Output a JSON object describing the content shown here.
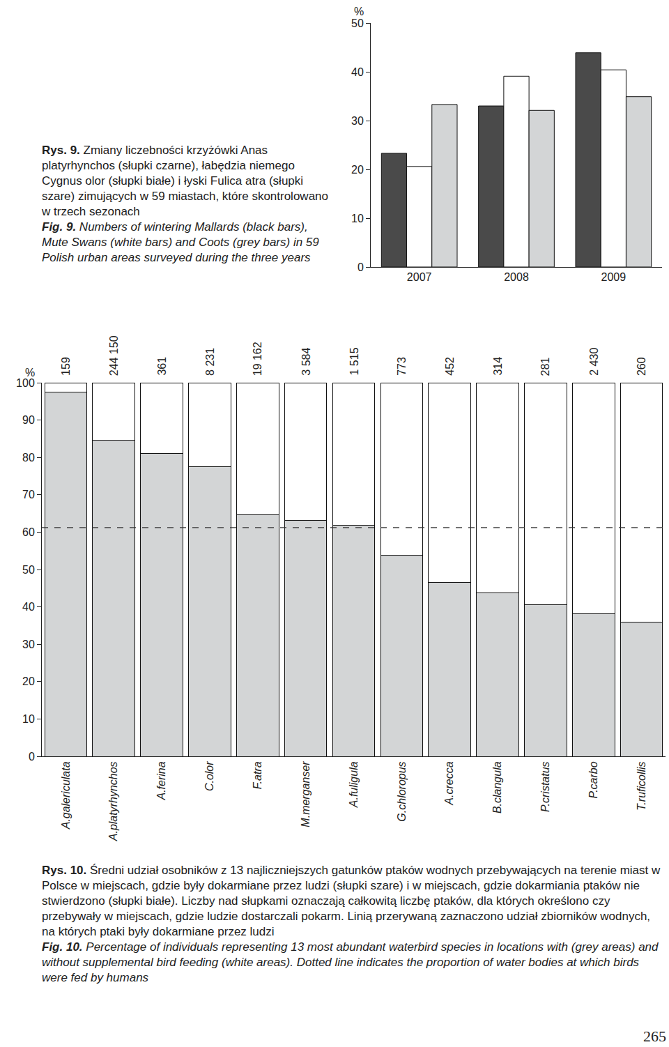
{
  "chart_data": [
    {
      "type": "bar",
      "y_label": "%",
      "categories": [
        "2007",
        "2008",
        "2009"
      ],
      "series": [
        {
          "color": "#4a4a4a",
          "values": [
            23.3,
            33.0,
            43.9
          ]
        },
        {
          "color": "#ffffff",
          "values": [
            20.6,
            39.1,
            40.4
          ]
        },
        {
          "color": "#d3d5d6",
          "values": [
            33.3,
            32.1,
            34.9
          ]
        }
      ],
      "ylim": [
        0,
        50
      ],
      "yticks": [
        0,
        10,
        20,
        30,
        40,
        50
      ],
      "grid": false
    },
    {
      "type": "bar",
      "stacked": true,
      "y_label": "%",
      "categories": [
        "A.galericulata",
        "A.platyrhynchos",
        "A.ferina",
        "C.olor",
        "F.atra",
        "M.merganser",
        "A.fuligula",
        "G.chloropus",
        "A.crecca",
        "B.clangula",
        "P.cristatus",
        "P.carbo",
        "T.ruficollis"
      ],
      "series": [
        {
          "color": "#d3d5d6",
          "values": [
            97.4,
            84.7,
            81.0,
            77.6,
            64.7,
            63.1,
            61.9,
            53.9,
            46.6,
            43.8,
            40.5,
            38.2,
            36.0
          ]
        },
        {
          "color": "#ffffff",
          "values": [
            2.6,
            15.3,
            19.0,
            22.4,
            35.3,
            36.9,
            38.1,
            46.1,
            53.4,
            56.2,
            59.5,
            61.8,
            64.0
          ]
        }
      ],
      "counts": [
        159,
        {
          "value": 244150,
          "label": "244 150"
        },
        361,
        {
          "value": 8231,
          "label": "8 231"
        },
        {
          "value": 19162,
          "label": "19 162"
        },
        {
          "value": 3584,
          "label": "3 584"
        },
        {
          "value": 1515,
          "label": "1 515"
        },
        773,
        452,
        314,
        281,
        {
          "value": 2430,
          "label": "2 430"
        },
        260
      ],
      "hline": 61.2,
      "ylim": [
        0,
        100
      ],
      "yticks": [
        0,
        10,
        20,
        30,
        40,
        50,
        60,
        70,
        80,
        90,
        100
      ],
      "grid": false
    }
  ],
  "captions": [
    {
      "label": "Rys. 9.",
      "text": "Zmiany liczebności krzyżówki Anas platyrhynchos (słupki czarne), łabędzia niemego Cygnus olor (słupki białe) i łyski Fulica atra (słupki szare) zimujących w 59 miastach, które skontrolowano w trzech sezonach",
      "label_en": "Fig. 9.",
      "text_en": "Numbers of wintering Mallards (black bars), Mute Swans (white bars) and Coots (grey bars) in 59 Polish urban areas surveyed during the three years"
    },
    {
      "label": "Rys. 10.",
      "text": "Średni udział osobników z 13 najliczniejszych gatunków ptaków wodnych przebywających na terenie miast w Polsce w miejscach, gdzie były dokarmiane przez ludzi (słupki szare) i w miejscach, gdzie dokarmiania ptaków nie stwierdzono (słupki białe). Liczby nad słupkami oznaczają całkowitą liczbę ptaków, dla których określono czy przebywały w miejscach, gdzie ludzie dostarczali pokarm. Linią przerywaną zaznaczono udział zbiorników wodnych, na których ptaki były dokarmiane przez ludzi",
      "label_en": "Fig. 10.",
      "text_en": "Percentage of individuals representing 13 most abundant waterbird species in locations with (grey areas) and without supplemental bird feeding (white areas). Dotted line indicates the proportion of water bodies at which birds were fed by humans"
    }
  ],
  "page_number": "265"
}
